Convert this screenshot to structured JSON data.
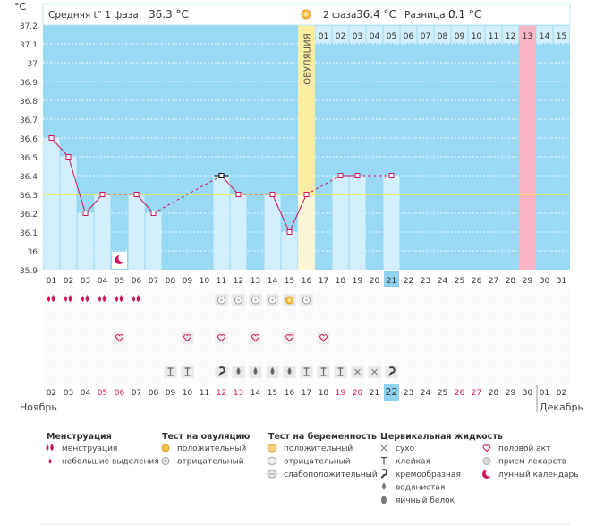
{
  "chart_data": {
    "type": "line",
    "y_unit": "°C",
    "ylim": [
      35.9,
      37.25
    ],
    "y_ticks": [
      35.9,
      36,
      36.1,
      36.2,
      36.3,
      36.4,
      36.5,
      36.6,
      36.7,
      36.8,
      36.9,
      37,
      37.1,
      37.2
    ],
    "y_tick_labels": [
      "35.9",
      "36",
      "36.1",
      "36.2",
      "36.3",
      "36.4",
      "36.5",
      "36.6",
      "36.7",
      "36.8",
      "36.9",
      "37",
      "37.1",
      "37.2"
    ],
    "cycle_days": [
      "01",
      "02",
      "03",
      "04",
      "05",
      "06",
      "07",
      "08",
      "09",
      "10",
      "11",
      "12",
      "13",
      "14",
      "15",
      "16",
      "17",
      "18",
      "19",
      "20",
      "21",
      "22",
      "23",
      "24",
      "25",
      "26",
      "27",
      "28",
      "29",
      "30",
      "31"
    ],
    "top_day_labels": [
      "01",
      "02",
      "03",
      "04",
      "05",
      "06",
      "07",
      "08",
      "09",
      "10",
      "11",
      "12",
      "13",
      "14",
      "15"
    ],
    "temperatures": [
      36.6,
      36.5,
      36.2,
      36.3,
      null,
      36.3,
      36.2,
      null,
      null,
      null,
      36.4,
      36.3,
      null,
      36.3,
      36.1,
      36.3,
      null,
      36.4,
      36.4,
      null,
      36.4,
      null,
      null,
      null,
      null,
      null,
      null,
      null,
      null,
      null,
      null
    ],
    "bar_days": [
      1,
      2,
      3,
      4,
      6,
      7,
      11,
      12,
      14,
      15,
      18,
      19,
      21
    ],
    "cover_line": 36.3,
    "ovulation_day": 16,
    "ovulation_label": "ОВУЛЯЦИЯ",
    "highlight_day": 29,
    "highlight_label": "13",
    "current_day_label": "21",
    "moon_day": 5,
    "phase1_label": "Средняя t° 1 фаза",
    "phase1_value": "36.3 °C",
    "phase2_label": "2 фаза",
    "phase2_value": "36.4 °C",
    "diff_label": "Разница t°",
    "diff_value": "0.1 °C",
    "menstruation_days": [
      1,
      2,
      3,
      4,
      5,
      6
    ],
    "ovulation_tests": [
      {
        "day": 11,
        "result": "negative"
      },
      {
        "day": 12,
        "result": "negative"
      },
      {
        "day": 13,
        "result": "negative"
      },
      {
        "day": 14,
        "result": "negative"
      },
      {
        "day": 15,
        "result": "positive"
      },
      {
        "day": 16,
        "result": "negative"
      }
    ],
    "intercourse_days": [
      5,
      9,
      11,
      13,
      15,
      17
    ],
    "fluid": [
      {
        "day": 8,
        "type": "sticky"
      },
      {
        "day": 9,
        "type": "sticky"
      },
      {
        "day": 11,
        "type": "creamy"
      },
      {
        "day": 12,
        "type": "watery"
      },
      {
        "day": 13,
        "type": "watery"
      },
      {
        "day": 14,
        "type": "watery"
      },
      {
        "day": 15,
        "type": "watery"
      },
      {
        "day": 16,
        "type": "sticky"
      },
      {
        "day": 17,
        "type": "sticky"
      },
      {
        "day": 18,
        "type": "sticky"
      },
      {
        "day": 19,
        "type": "dry"
      },
      {
        "day": 20,
        "type": "dry"
      },
      {
        "day": 21,
        "type": "creamy"
      }
    ],
    "dates": [
      "02",
      "03",
      "04",
      "05",
      "06",
      "07",
      "08",
      "09",
      "10",
      "11",
      "12",
      "13",
      "14",
      "15",
      "16",
      "17",
      "18",
      "19",
      "20",
      "21",
      "22",
      "23",
      "24",
      "25",
      "26",
      "27",
      "28",
      "29",
      "30",
      "01",
      "02"
    ],
    "weekend_dates": [
      3,
      4,
      10,
      11,
      17,
      18,
      24,
      25
    ],
    "current_date_label": "22",
    "month_left": "Ноябрь",
    "month_right": "Декабрь",
    "legend": [
      {
        "title": "Менструация",
        "items": [
          {
            "icon": "drops",
            "label": "менструация"
          },
          {
            "icon": "drop",
            "label": "небольшие выделения"
          }
        ]
      },
      {
        "title": "Тест на овуляцию",
        "items": [
          {
            "icon": "ov-pos",
            "label": "положительный"
          },
          {
            "icon": "ov-neg",
            "label": "отрицательный"
          }
        ]
      },
      {
        "title": "Тест на беременность",
        "items": [
          {
            "icon": "pr-pos",
            "label": "положительный"
          },
          {
            "icon": "pr-neg",
            "label": "отрицательный"
          },
          {
            "icon": "pr-weak",
            "label": "слабоположительный"
          }
        ]
      },
      {
        "title": "Цервикальная жидкость",
        "items": [
          {
            "icon": "dry",
            "label": "сухо"
          },
          {
            "icon": "sticky",
            "label": "клейкая"
          },
          {
            "icon": "creamy",
            "label": "кремообразная"
          },
          {
            "icon": "watery",
            "label": "водянистая"
          },
          {
            "icon": "eggwhite",
            "label": "яичный белок"
          }
        ]
      },
      {
        "title": "",
        "items": [
          {
            "icon": "heart",
            "label": "половой акт"
          },
          {
            "icon": "pill",
            "label": "прием лекарств"
          },
          {
            "icon": "moon",
            "label": "лунный календарь"
          }
        ]
      }
    ],
    "colors": {
      "background": "#99d9f4",
      "bar": "#d2effb",
      "ovulation": "#fbeea0",
      "ovulation_below": "#fdf6d6",
      "highlight": "#f9b4c6",
      "line": "#d2135a",
      "cover_line": "#f2e65b",
      "current_day": "#8fd2ee",
      "weekend": "#d2135a"
    }
  }
}
